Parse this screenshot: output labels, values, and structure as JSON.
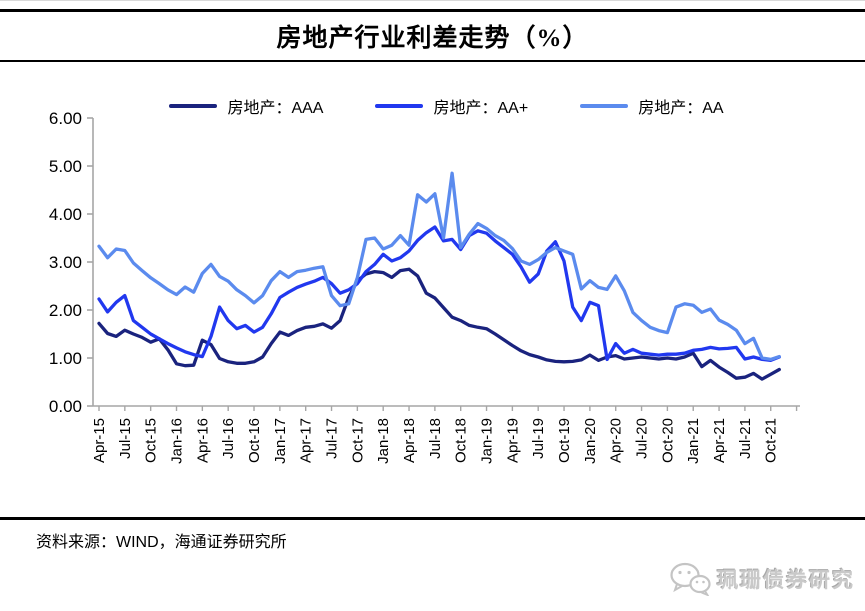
{
  "page": {
    "title": "房地产行业利差走势（%）",
    "source": "资料来源：WIND，海通证券研究所",
    "watermark": "珮珊债券研究"
  },
  "colors": {
    "axis": "#a6a6a6",
    "tick_text": "#000000",
    "series_aaa": "#1a237e",
    "series_aa_plus": "#2138ef",
    "series_aa": "#5b8bee"
  },
  "chart_data": {
    "type": "line",
    "title": "房地产行业利差走势（%）",
    "ylim": [
      0,
      6
    ],
    "grid": false,
    "legend_position": "top",
    "ytick_labels": [
      "0.00",
      "1.00",
      "2.00",
      "3.00",
      "4.00",
      "5.00",
      "6.00"
    ],
    "xtick_labels": [
      "Apr-15",
      "Jul-15",
      "Oct-15",
      "Jan-16",
      "Apr-16",
      "Jul-16",
      "Oct-16",
      "Jan-17",
      "Apr-17",
      "Jul-17",
      "Oct-17",
      "Jan-18",
      "Apr-18",
      "Jul-18",
      "Oct-18",
      "Jan-19",
      "Apr-19",
      "Jul-19",
      "Oct-19",
      "Jan-20",
      "Apr-20",
      "Jul-20",
      "Oct-20",
      "Jan-21",
      "Apr-21",
      "Jul-21",
      "Oct-21"
    ],
    "x": [
      "Apr-15",
      "May-15",
      "Jun-15",
      "Jul-15",
      "Aug-15",
      "Sep-15",
      "Oct-15",
      "Nov-15",
      "Dec-15",
      "Jan-16",
      "Feb-16",
      "Mar-16",
      "Apr-16",
      "May-16",
      "Jun-16",
      "Jul-16",
      "Aug-16",
      "Sep-16",
      "Oct-16",
      "Nov-16",
      "Dec-16",
      "Jan-17",
      "Feb-17",
      "Mar-17",
      "Apr-17",
      "May-17",
      "Jun-17",
      "Jul-17",
      "Aug-17",
      "Sep-17",
      "Oct-17",
      "Nov-17",
      "Dec-17",
      "Jan-18",
      "Feb-18",
      "Mar-18",
      "Apr-18",
      "May-18",
      "Jun-18",
      "Jul-18",
      "Aug-18",
      "Sep-18",
      "Oct-18",
      "Nov-18",
      "Dec-18",
      "Jan-19",
      "Feb-19",
      "Mar-19",
      "Apr-19",
      "May-19",
      "Jun-19",
      "Jul-19",
      "Aug-19",
      "Sep-19",
      "Oct-19",
      "Nov-19",
      "Dec-19",
      "Jan-20",
      "Feb-20",
      "Mar-20",
      "Apr-20",
      "May-20",
      "Jun-20",
      "Jul-20",
      "Aug-20",
      "Sep-20",
      "Oct-20",
      "Nov-20",
      "Dec-20",
      "Jan-21",
      "Feb-21",
      "Mar-21",
      "Apr-21",
      "May-21",
      "Jun-21",
      "Jul-21",
      "Aug-21",
      "Sep-21",
      "Oct-21",
      "Nov-21"
    ],
    "series": [
      {
        "name": "房地产：AAA",
        "color_key": "series_aaa",
        "values": [
          1.72,
          1.51,
          1.45,
          1.58,
          1.5,
          1.43,
          1.33,
          1.4,
          1.17,
          0.88,
          0.84,
          0.85,
          1.37,
          1.28,
          0.99,
          0.92,
          0.89,
          0.89,
          0.92,
          1.02,
          1.3,
          1.54,
          1.47,
          1.57,
          1.64,
          1.66,
          1.71,
          1.62,
          1.78,
          2.26,
          2.61,
          2.75,
          2.8,
          2.78,
          2.68,
          2.82,
          2.85,
          2.71,
          2.35,
          2.25,
          2.05,
          1.85,
          1.78,
          1.68,
          1.64,
          1.61,
          1.5,
          1.38,
          1.26,
          1.15,
          1.07,
          1.02,
          0.96,
          0.93,
          0.92,
          0.93,
          0.96,
          1.06,
          0.95,
          1.02,
          1.05,
          0.98,
          1.0,
          1.02,
          1.0,
          0.98,
          1.0,
          0.98,
          1.02,
          1.1,
          0.82,
          0.95,
          0.81,
          0.7,
          0.58,
          0.6,
          0.68,
          0.56,
          0.66,
          0.76
        ]
      },
      {
        "name": "房地产：AA+",
        "color_key": "series_aa_plus",
        "values": [
          2.23,
          1.96,
          2.16,
          2.3,
          1.78,
          1.64,
          1.5,
          1.4,
          1.3,
          1.21,
          1.13,
          1.07,
          1.03,
          1.45,
          2.06,
          1.78,
          1.61,
          1.68,
          1.54,
          1.64,
          1.92,
          2.26,
          2.37,
          2.47,
          2.54,
          2.6,
          2.68,
          2.55,
          2.35,
          2.42,
          2.55,
          2.8,
          2.95,
          3.16,
          3.02,
          3.09,
          3.23,
          3.45,
          3.61,
          3.73,
          3.44,
          3.47,
          3.26,
          3.55,
          3.65,
          3.6,
          3.44,
          3.3,
          3.16,
          2.9,
          2.58,
          2.75,
          3.23,
          3.42,
          3.02,
          2.06,
          1.78,
          2.16,
          2.09,
          0.97,
          1.3,
          1.1,
          1.18,
          1.1,
          1.08,
          1.06,
          1.08,
          1.08,
          1.1,
          1.16,
          1.18,
          1.22,
          1.19,
          1.2,
          1.22,
          0.98,
          1.02,
          0.97,
          0.95,
          1.02
        ]
      },
      {
        "name": "房地产：AA",
        "color_key": "series_aa",
        "values": [
          3.33,
          3.09,
          3.27,
          3.24,
          2.98,
          2.82,
          2.67,
          2.55,
          2.42,
          2.32,
          2.48,
          2.37,
          2.76,
          2.95,
          2.7,
          2.6,
          2.42,
          2.3,
          2.15,
          2.3,
          2.61,
          2.8,
          2.68,
          2.8,
          2.83,
          2.87,
          2.9,
          2.3,
          2.09,
          2.13,
          2.68,
          3.47,
          3.5,
          3.27,
          3.35,
          3.55,
          3.35,
          4.4,
          4.25,
          4.42,
          3.5,
          4.85,
          3.3,
          3.58,
          3.8,
          3.7,
          3.55,
          3.45,
          3.28,
          3.02,
          2.95,
          3.05,
          3.2,
          3.3,
          3.23,
          3.16,
          2.44,
          2.61,
          2.47,
          2.43,
          2.71,
          2.4,
          1.95,
          1.78,
          1.64,
          1.57,
          1.53,
          2.06,
          2.13,
          2.1,
          1.95,
          2.02,
          1.79,
          1.7,
          1.58,
          1.3,
          1.41,
          1.0,
          0.97,
          1.03
        ]
      }
    ]
  }
}
